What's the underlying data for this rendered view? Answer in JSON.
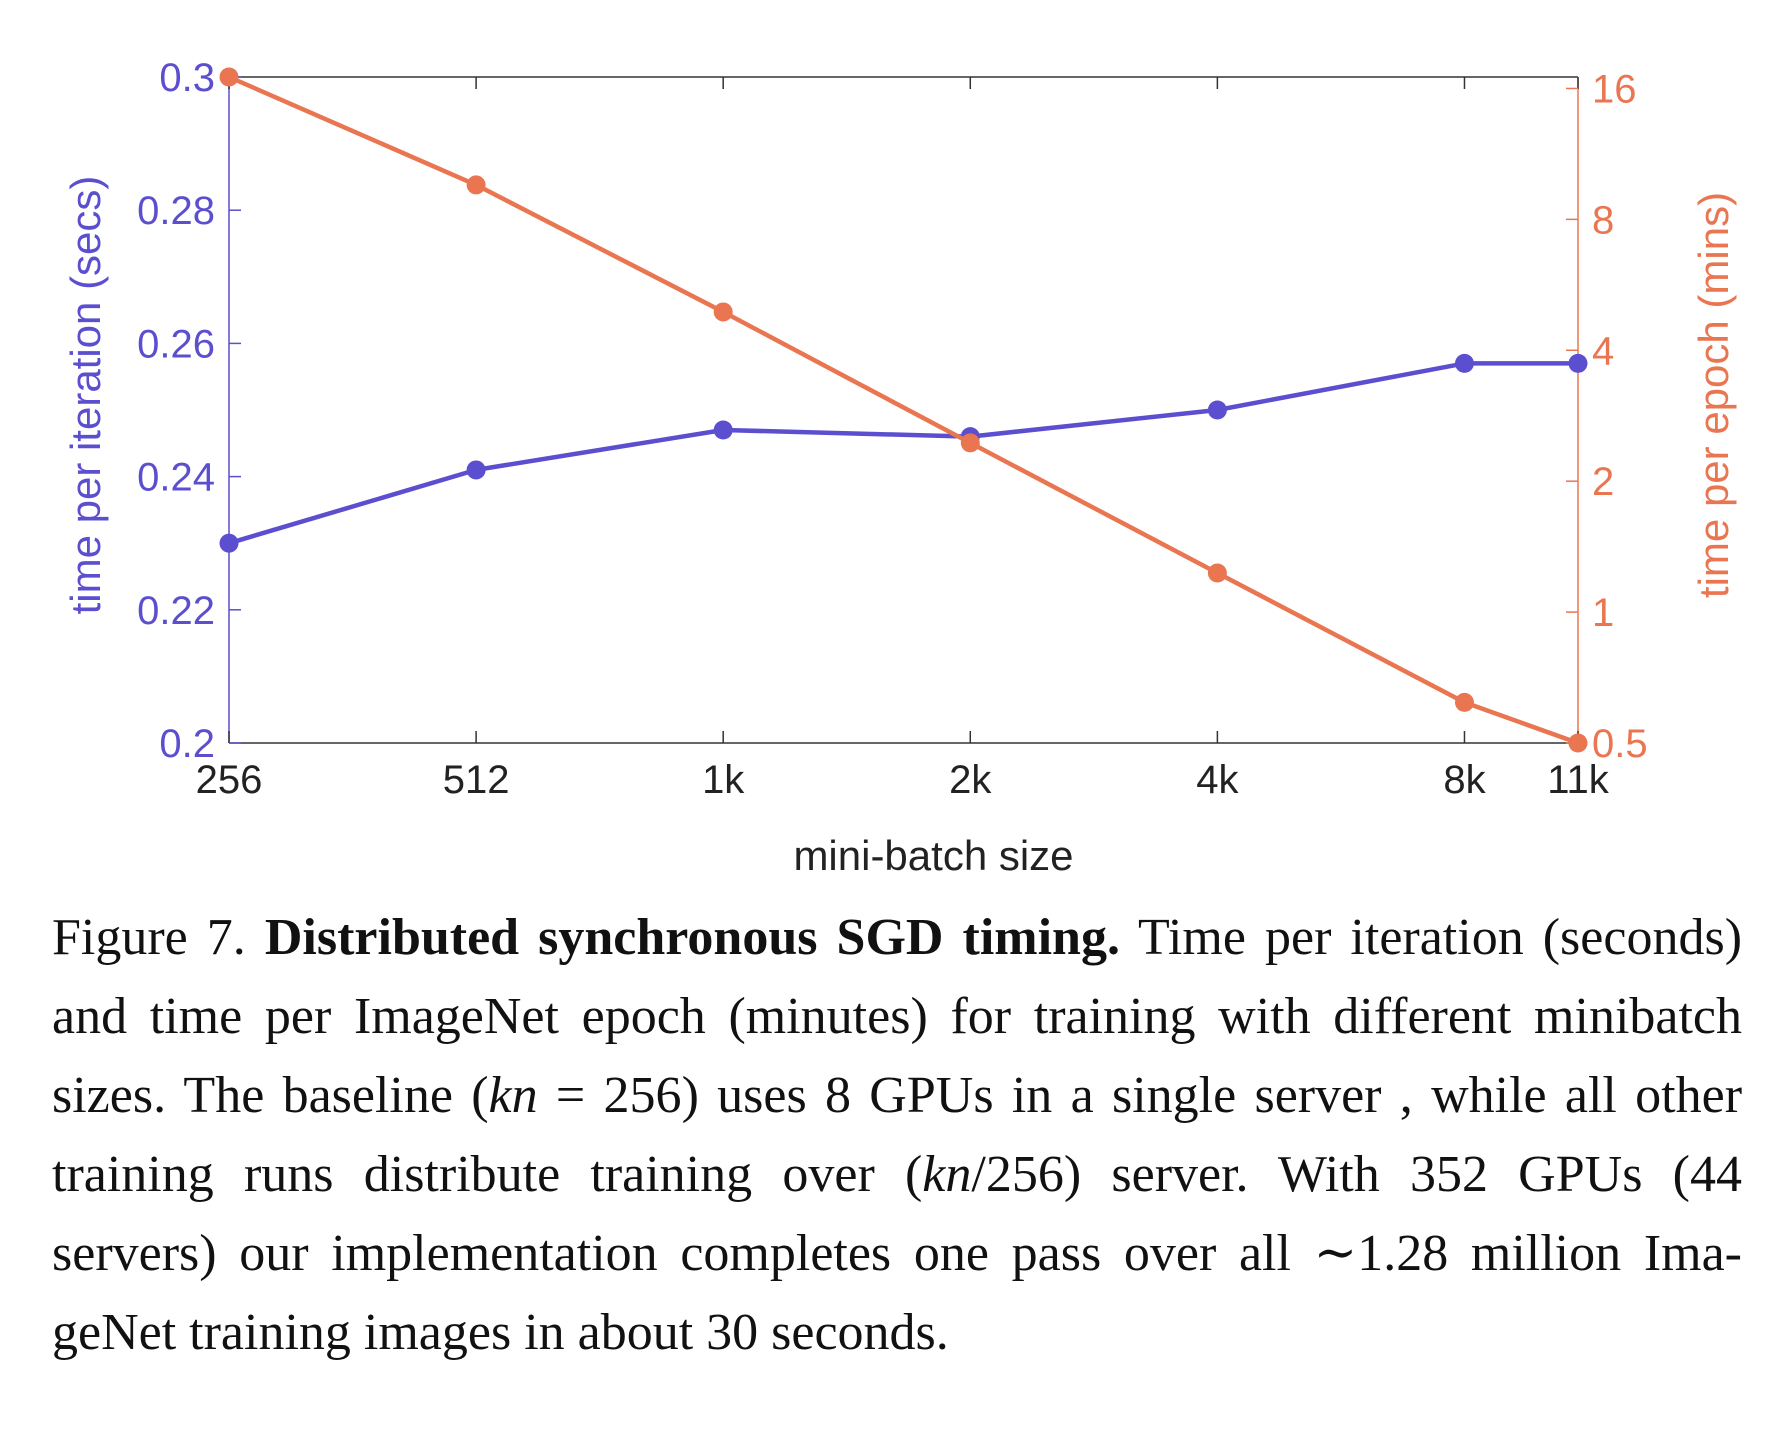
{
  "chart_data": {
    "type": "line",
    "x_categories": [
      "256",
      "512",
      "1k",
      "2k",
      "4k",
      "8k",
      "11k"
    ],
    "x_values": [
      256,
      512,
      1024,
      2048,
      4096,
      8192,
      11264
    ],
    "xlabel": "mini-batch size",
    "x_scale": "log2",
    "series": [
      {
        "axis": "left",
        "color": "#5B4FCF",
        "values": [
          0.23,
          0.241,
          0.247,
          0.246,
          0.25,
          0.257,
          0.257
        ]
      },
      {
        "axis": "right",
        "color": "#EA7651",
        "values": [
          17.0,
          9.6,
          4.9,
          2.45,
          1.23,
          0.62,
          0.5
        ]
      }
    ],
    "left_axis": {
      "label": "time per iteration (secs)",
      "ylim": [
        0.2,
        0.3
      ],
      "ticks": [
        "0.2",
        "0.22",
        "0.24",
        "0.26",
        "0.28",
        "0.3"
      ],
      "tick_values": [
        0.2,
        0.22,
        0.24,
        0.26,
        0.28,
        0.3
      ]
    },
    "right_axis": {
      "label": "time per epoch (mins)",
      "scale": "log",
      "ylim": [
        0.5,
        17.0
      ],
      "ticks": [
        "0.5",
        "1",
        "2",
        "4",
        "8",
        "16"
      ],
      "tick_values": [
        0.5,
        1,
        2,
        4,
        8,
        16
      ]
    },
    "grid": false
  },
  "caption": {
    "figure_label": "Figure 7.",
    "bold_title": "Distributed synchronous SGD timing.",
    "part1": " Time per itera­tion (seconds) and time per ImageNet epoch (minutes) for training with different minibatch sizes. The baseline (",
    "math1_var": "kn",
    "math1_rest": " = 256",
    "part2": ") uses 8 GPUs in a single server , while all other training runs distribute training over (",
    "math2_var": "kn",
    "math2_rest": "/256",
    "part3": ") server. With 352 GPUs (44 servers) our implementation completes one pass over all ∼1.28 million Ima­geNet training images in about 30 seconds."
  }
}
